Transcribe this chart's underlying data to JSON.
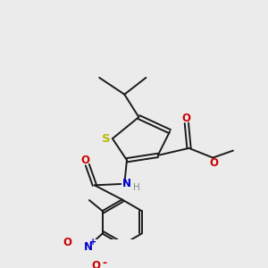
{
  "background_color": "#ebebeb",
  "bond_color": "#1a1a1a",
  "S_color": "#b8b800",
  "N_color": "#0000cc",
  "O_color": "#cc0000",
  "C_color": "#1a1a1a",
  "figsize": [
    3.0,
    3.0
  ],
  "dpi": 100,
  "xlim": [
    0,
    10
  ],
  "ylim": [
    0,
    10
  ],
  "lw": 1.4,
  "fs": 8.5
}
